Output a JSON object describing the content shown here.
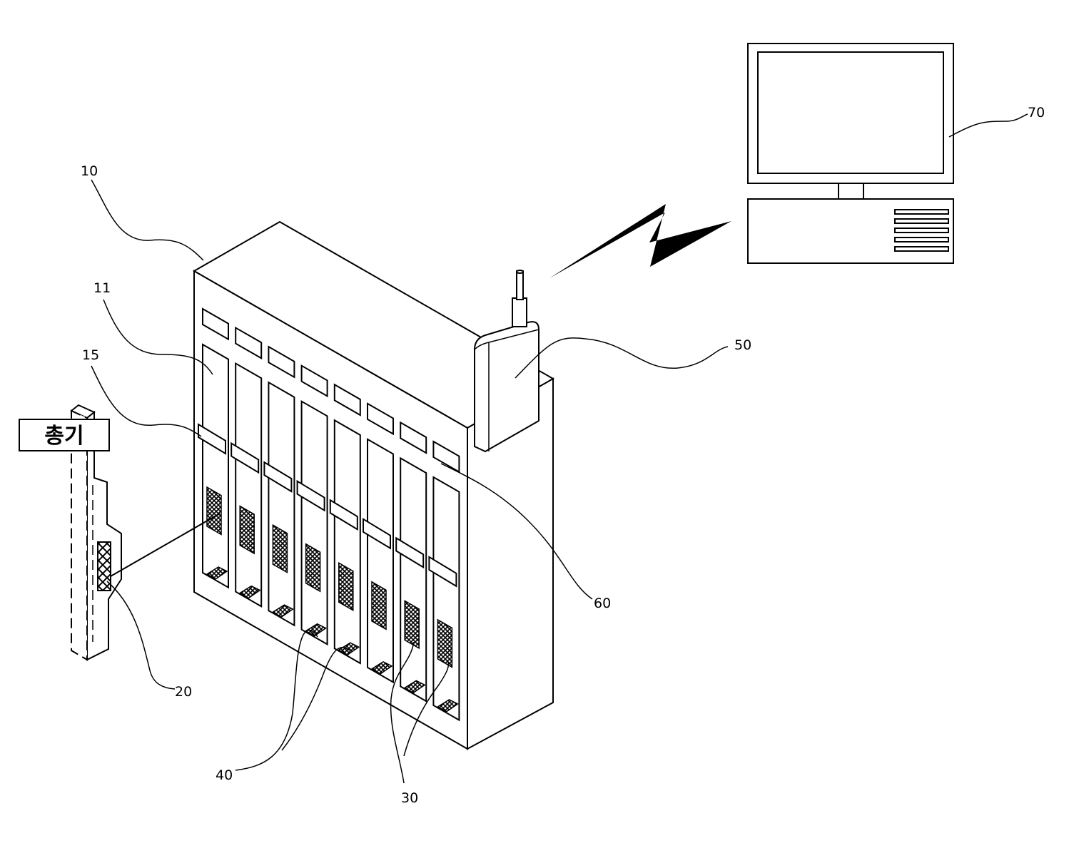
{
  "labels": {
    "cabinet": "10",
    "slot": "11",
    "slot_tag": "15",
    "rifle_tag": "20",
    "sensor": "30",
    "sensor_base": "40",
    "transmitter": "50",
    "slot_indicator": "60",
    "monitor_pc": "70",
    "rifle_sign": "총기"
  },
  "slots": [
    {
      "id": "slot-1"
    },
    {
      "id": "slot-2"
    },
    {
      "id": "slot-3"
    },
    {
      "id": "slot-4"
    },
    {
      "id": "slot-5"
    },
    {
      "id": "slot-6"
    },
    {
      "id": "slot-7"
    },
    {
      "id": "slot-8"
    }
  ]
}
